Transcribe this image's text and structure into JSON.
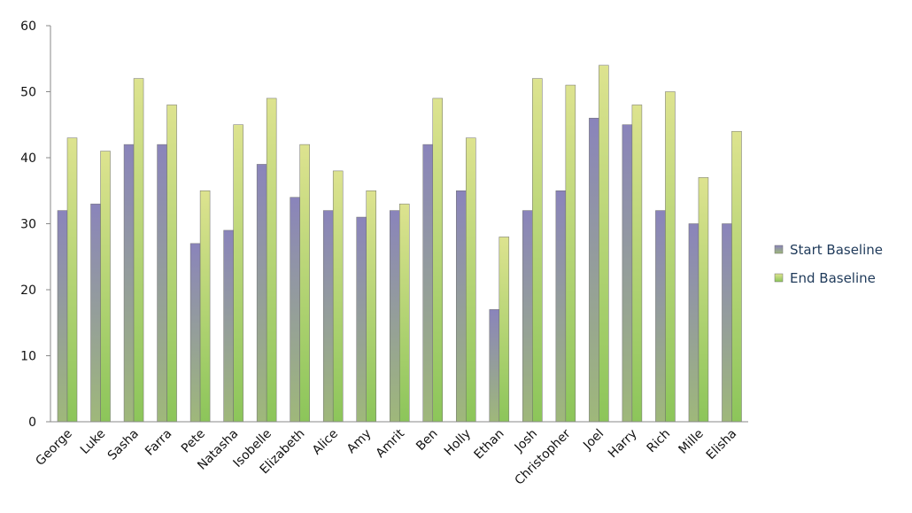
{
  "chart_data": {
    "type": "bar",
    "categories": [
      "George",
      "Luke",
      "Sasha",
      "Farra",
      "Pete",
      "Natasha",
      "Isobelle",
      "Elizabeth",
      "Alice",
      "Amy",
      "Amrit",
      "Ben",
      "Holly",
      "Ethan",
      "Josh",
      "Christopher",
      "Joel",
      "Harry",
      "Rich",
      "Mille",
      "Elisha"
    ],
    "series": [
      {
        "name": "Start Baseline",
        "color": "#8a84bb",
        "values": [
          32,
          33,
          42,
          42,
          27,
          29,
          39,
          34,
          32,
          31,
          32,
          42,
          35,
          17,
          32,
          35,
          46,
          45,
          32,
          30,
          30
        ]
      },
      {
        "name": "End Baseline",
        "color": "#dde38f",
        "values": [
          43,
          41,
          52,
          48,
          35,
          45,
          49,
          42,
          38,
          35,
          33,
          49,
          43,
          28,
          52,
          51,
          54,
          48,
          50,
          37,
          44
        ]
      }
    ],
    "ylim": [
      0,
      60
    ],
    "yticks": [
      0,
      10,
      20,
      30,
      40,
      50,
      60
    ],
    "grid": false,
    "legend": "right"
  }
}
